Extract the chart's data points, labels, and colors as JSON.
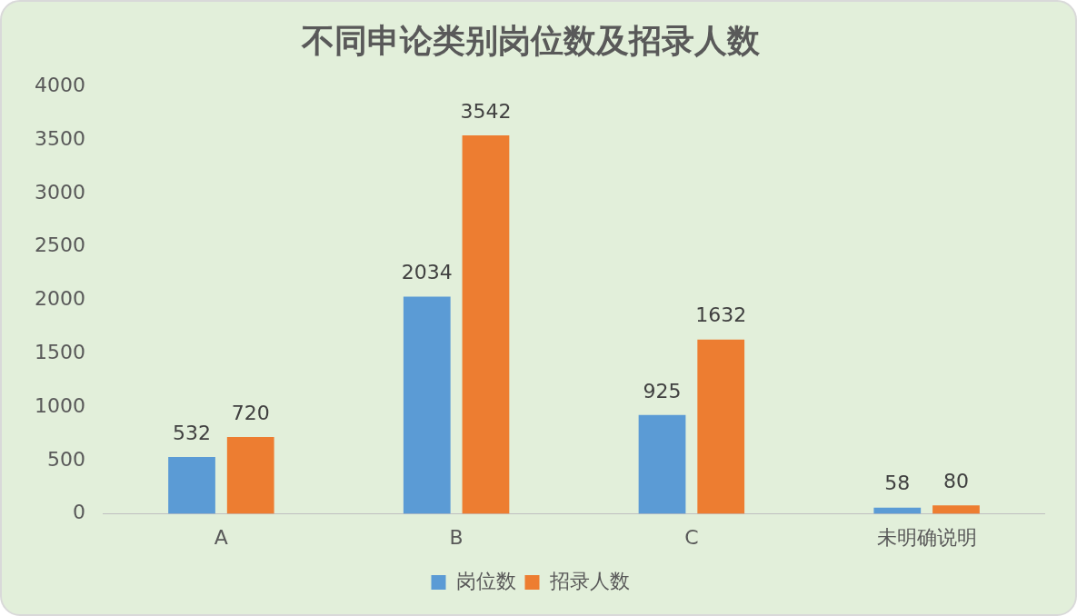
{
  "chart_data": {
    "type": "bar",
    "title": "不同申论类别岗位数及招录人数",
    "categories": [
      "A",
      "B",
      "C",
      "未明确说明"
    ],
    "series": [
      {
        "name": "岗位数",
        "color": "#5b9bd5",
        "values": [
          532,
          2034,
          925,
          58
        ]
      },
      {
        "name": "招录人数",
        "color": "#ed7d31",
        "values": [
          720,
          3542,
          1632,
          80
        ]
      }
    ],
    "ylim": [
      0,
      4000
    ],
    "yticks": [
      0,
      500,
      1000,
      1500,
      2000,
      2500,
      3000,
      3500,
      4000
    ],
    "grid": false,
    "legend": "bottom",
    "data_labels": true
  }
}
